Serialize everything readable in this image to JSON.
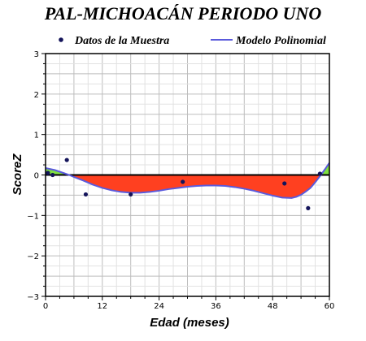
{
  "chart_data": {
    "type": "line",
    "title": "PAL-MICHOACÁN PERIODO UNO",
    "xlabel": "Edad (meses)",
    "ylabel": "ScoreZ",
    "xlim": [
      0,
      60
    ],
    "ylim": [
      -3,
      3
    ],
    "x_ticks": [
      0,
      12,
      24,
      36,
      48,
      60
    ],
    "y_ticks": [
      -3,
      -2,
      -1,
      0,
      1,
      2,
      3
    ],
    "grid": true,
    "legend_position": "top",
    "series": [
      {
        "name": "Datos de la Muestra",
        "kind": "scatter",
        "color": "#14145a",
        "x": [
          0.5,
          1.5,
          4.5,
          8.5,
          18,
          29,
          50.5,
          55.5,
          58
        ],
        "y": [
          0.05,
          0.0,
          0.37,
          -0.48,
          -0.48,
          -0.17,
          -0.21,
          -0.82,
          0.03
        ]
      },
      {
        "name": "Modelo Polinomial",
        "kind": "line",
        "color": "#5a5adc",
        "x": [
          0,
          2,
          4,
          5,
          6,
          8,
          10,
          12,
          14,
          16,
          18,
          20,
          22,
          24,
          26,
          28,
          30,
          32,
          34,
          36,
          38,
          40,
          42,
          44,
          46,
          48,
          50,
          52,
          53,
          54,
          55,
          56,
          57,
          58,
          59,
          60
        ],
        "y": [
          0.17,
          0.12,
          0.04,
          0.0,
          -0.05,
          -0.14,
          -0.24,
          -0.32,
          -0.38,
          -0.42,
          -0.44,
          -0.44,
          -0.42,
          -0.39,
          -0.35,
          -0.32,
          -0.29,
          -0.27,
          -0.26,
          -0.26,
          -0.27,
          -0.3,
          -0.34,
          -0.39,
          -0.45,
          -0.51,
          -0.56,
          -0.57,
          -0.54,
          -0.49,
          -0.41,
          -0.32,
          -0.18,
          -0.03,
          0.13,
          0.3
        ]
      }
    ],
    "fill_colors": {
      "below_zero": "#ff4020",
      "above_zero": "#7ee040"
    }
  }
}
